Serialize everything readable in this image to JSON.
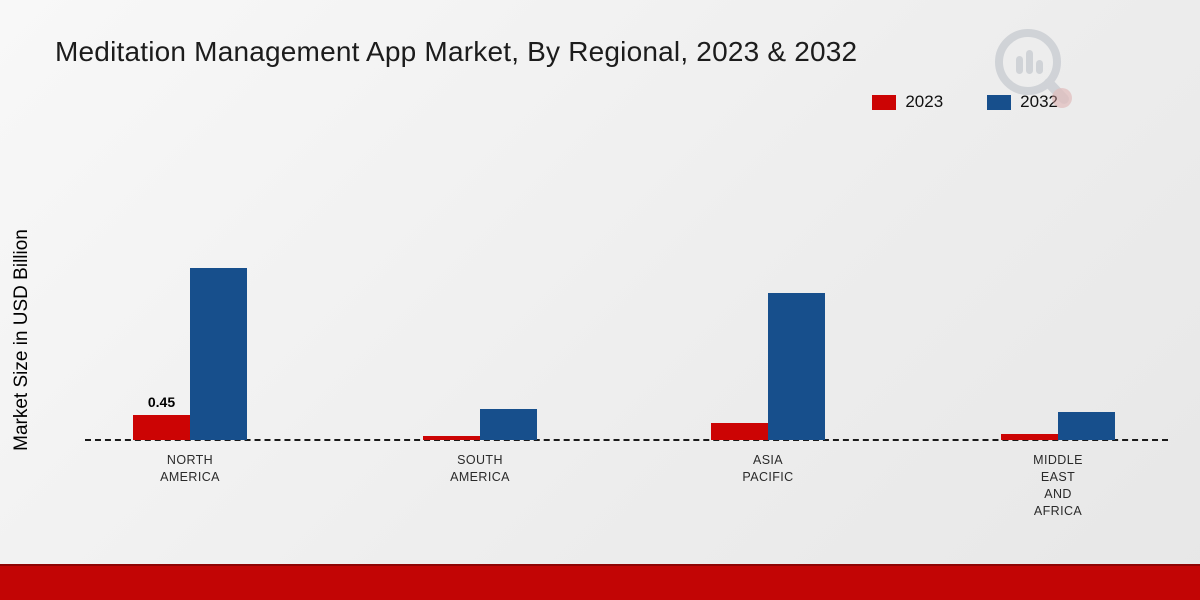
{
  "page": {
    "title": "Meditation Management App Market, By Regional, 2023 & 2032",
    "footer_color": "#c20505",
    "background_color": "#efefef"
  },
  "y_axis": {
    "label": "Market Size in USD Billion"
  },
  "legend": {
    "position": "top-right",
    "items": [
      {
        "label": "2023",
        "color": "#cc0404"
      },
      {
        "label": "2032",
        "color": "#174f8c"
      }
    ]
  },
  "watermark": {
    "name": "magnifier-bar-chart-logo",
    "color": "#b9bec6",
    "accent": "#d89a9a"
  },
  "chart_data": {
    "type": "bar",
    "title": "Meditation Management App Market, By Regional, 2023 & 2032",
    "xlabel": "",
    "ylabel": "Market Size in USD Billion",
    "categories": [
      "NORTH AMERICA",
      "SOUTH AMERICA",
      "ASIA PACIFIC",
      "MIDDLE EAST AND AFRICA"
    ],
    "series": [
      {
        "name": "2023",
        "color": "#cc0404",
        "values": [
          0.45,
          0.08,
          0.3,
          0.1
        ],
        "value_labels": [
          "0.45",
          "",
          "",
          ""
        ]
      },
      {
        "name": "2032",
        "color": "#174f8c",
        "values": [
          3.1,
          0.55,
          2.65,
          0.5
        ],
        "value_labels": [
          "",
          "",
          "",
          ""
        ]
      }
    ],
    "ylim": [
      0,
      3.5
    ],
    "grid": false,
    "baseline_style": "dashed",
    "legend_position": "top-right"
  }
}
